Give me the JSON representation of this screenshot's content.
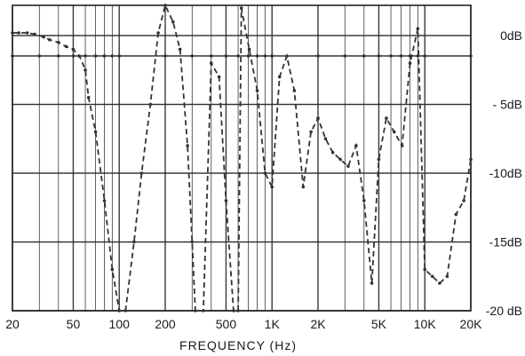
{
  "chart_data": {
    "type": "line",
    "title": "",
    "xlabel": "FREQUENCY (Hz)",
    "ylabel": "",
    "x_scale": "log",
    "xlim": [
      20,
      20000
    ],
    "ylim": [
      -20,
      2.2
    ],
    "grid": true,
    "legend": "none",
    "x_ticks": [
      {
        "value": 20,
        "label": "20"
      },
      {
        "value": 50,
        "label": "50"
      },
      {
        "value": 100,
        "label": "100"
      },
      {
        "value": 200,
        "label": "200"
      },
      {
        "value": 500,
        "label": "500"
      },
      {
        "value": 1000,
        "label": "1K"
      },
      {
        "value": 2000,
        "label": "2K"
      },
      {
        "value": 5000,
        "label": "5K"
      },
      {
        "value": 10000,
        "label": "10K"
      },
      {
        "value": 20000,
        "label": "20K"
      }
    ],
    "y_ticks": [
      {
        "value": 0,
        "label": "0dB"
      },
      {
        "value": -5,
        "label": "- 5dB"
      },
      {
        "value": -10,
        "label": "-10dB"
      },
      {
        "value": -15,
        "label": "-15dB"
      },
      {
        "value": -20,
        "label": "-20 dB"
      }
    ],
    "series": [
      {
        "color": "#333333",
        "style": "dashed",
        "markers": true,
        "x": [
          20,
          22,
          25,
          28,
          32,
          35,
          40,
          45,
          50,
          55,
          60,
          63,
          70,
          80,
          90,
          100,
          110,
          125,
          140,
          160,
          180,
          200,
          225,
          250,
          280,
          300,
          315,
          355,
          400,
          450,
          500,
          560,
          600,
          630,
          710,
          800,
          900,
          1000,
          1120,
          1250,
          1400,
          1600,
          1800,
          2000,
          2240,
          2500,
          2800,
          3150,
          3550,
          4000,
          4500,
          5000,
          5600,
          6300,
          7100,
          8000,
          9000,
          10000,
          11200,
          12500,
          14000,
          16000,
          18000,
          20000
        ],
        "y": [
          0.2,
          0.2,
          0.2,
          0.1,
          -0.1,
          -0.3,
          -0.5,
          -0.8,
          -1.0,
          -1.5,
          -2.5,
          -4.5,
          -7.0,
          -12.0,
          -17.0,
          -20.0,
          -20.0,
          -15.0,
          -10.0,
          -5.0,
          0.2,
          2.2,
          1.0,
          -1.0,
          -8.0,
          -15.0,
          -20.0,
          -20.0,
          -2.0,
          -3.0,
          -12.0,
          -20.0,
          -20.0,
          2.0,
          -1.0,
          -4.0,
          -10.0,
          -11.0,
          -3.0,
          -1.5,
          -4.0,
          -11.0,
          -7.0,
          -6.0,
          -7.5,
          -8.5,
          -9.0,
          -9.5,
          -8.0,
          -12.0,
          -18.0,
          -9.0,
          -6.0,
          -7.0,
          -8.0,
          -2.0,
          0.5,
          -17.0,
          -17.5,
          -18.0,
          -17.5,
          -13.0,
          -12.0,
          -9.0
        ]
      }
    ]
  }
}
